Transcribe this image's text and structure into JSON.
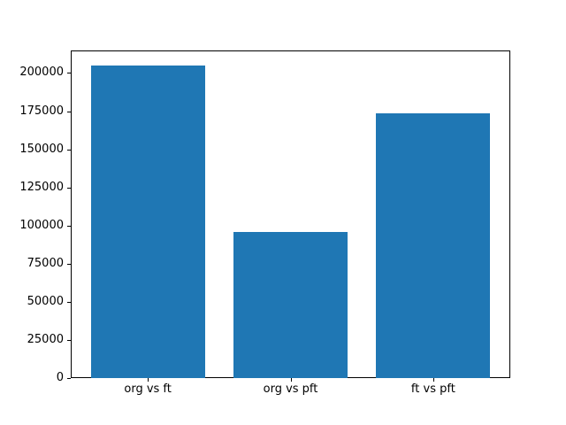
{
  "figure": {
    "background_color": "#ffffff"
  },
  "chart_data": {
    "type": "bar",
    "title": "",
    "xlabel": "",
    "ylabel": "",
    "categories": [
      "org vs ft",
      "org vs pft",
      "ft vs pft"
    ],
    "values": [
      205000,
      95800,
      173600
    ],
    "yticks": [
      0,
      25000,
      50000,
      75000,
      100000,
      125000,
      150000,
      175000,
      200000
    ],
    "ytick_labels": [
      "0",
      "25000",
      "50000",
      "75000",
      "100000",
      "125000",
      "150000",
      "175000",
      "200000"
    ],
    "ylim": [
      0,
      214800
    ],
    "xlim": [
      -0.54,
      2.54
    ],
    "bar_width_fraction": 0.8,
    "bar_color": "#1f77b4",
    "axis_color": "#000000",
    "text_color": "#000000",
    "grid": false,
    "legend": null
  }
}
